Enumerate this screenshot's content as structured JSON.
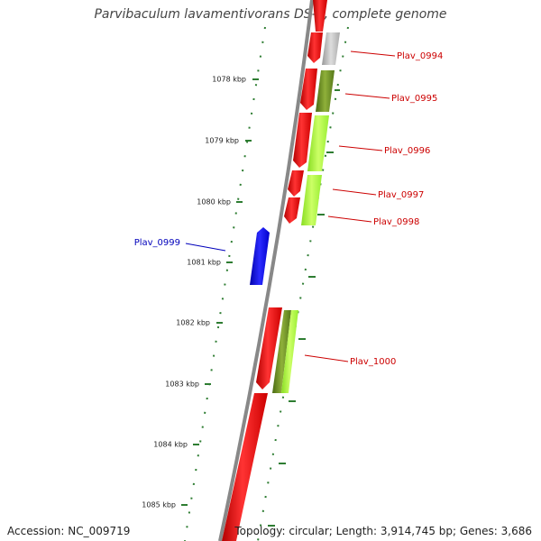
{
  "title": "Parvibaculum lavamentivorans DS-1, complete genome",
  "footer": {
    "accession": "Accession: NC_009719",
    "summary": "Topology: circular; Length: 3,914,745 bp; Genes: 3,686"
  },
  "ruler": {
    "unit": "kbp",
    "ticks": [
      {
        "value": 1078,
        "label": "1078 kbp"
      },
      {
        "value": 1079,
        "label": "1079 kbp"
      },
      {
        "value": 1080,
        "label": "1080 kbp"
      },
      {
        "value": 1081,
        "label": "1081 kbp"
      },
      {
        "value": 1082,
        "label": "1082 kbp"
      },
      {
        "value": 1083,
        "label": "1083 kbp"
      },
      {
        "value": 1084,
        "label": "1084 kbp"
      },
      {
        "value": 1085,
        "label": "1085 kbp"
      }
    ]
  },
  "genes": [
    {
      "name": "Plav_0994",
      "strand": "reverse",
      "color": "#cc0000"
    },
    {
      "name": "Plav_0995",
      "strand": "reverse",
      "color": "#cc0000"
    },
    {
      "name": "Plav_0996",
      "strand": "reverse",
      "color": "#cc0000"
    },
    {
      "name": "Plav_0997",
      "strand": "reverse",
      "color": "#cc0000"
    },
    {
      "name": "Plav_0998",
      "strand": "reverse",
      "color": "#cc0000"
    },
    {
      "name": "Plav_0999",
      "strand": "forward",
      "color": "#0000bb"
    },
    {
      "name": "Plav_1000",
      "strand": "reverse",
      "color": "#cc0000"
    }
  ],
  "colors": {
    "backbone": "#888888",
    "reverse_gene": "#ff1a1a",
    "forward_gene": "#0a0aff",
    "cog_gray": "#bbbbbb",
    "cog_olive": "#6b8e23",
    "cog_lime": "#aaff33",
    "tick": "#2e7d32"
  }
}
